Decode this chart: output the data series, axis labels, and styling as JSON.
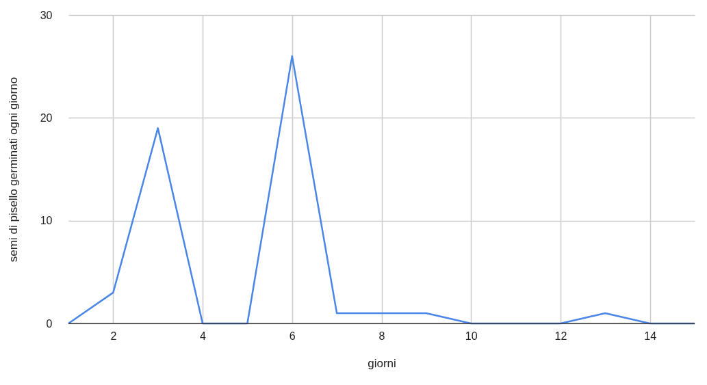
{
  "chart_data": {
    "type": "line",
    "xlabel": "giorni",
    "ylabel": "semi di pisello germinati ogni giorno",
    "x": [
      1,
      2,
      3,
      4,
      5,
      6,
      7,
      8,
      9,
      10,
      11,
      12,
      13,
      14,
      15
    ],
    "series": [
      {
        "color": "#4a86e8",
        "values": [
          0,
          3,
          19,
          0,
          0,
          26,
          1,
          1,
          1,
          0,
          0,
          0,
          1,
          0,
          0
        ]
      }
    ],
    "xlim": [
      1,
      15
    ],
    "xticks": [
      2,
      4,
      6,
      8,
      10,
      12,
      14
    ],
    "ylim": [
      0,
      30
    ],
    "yticks": [
      0,
      10,
      20,
      30
    ],
    "grid": true,
    "legend": false,
    "marker": "none",
    "line_style": "solid"
  }
}
